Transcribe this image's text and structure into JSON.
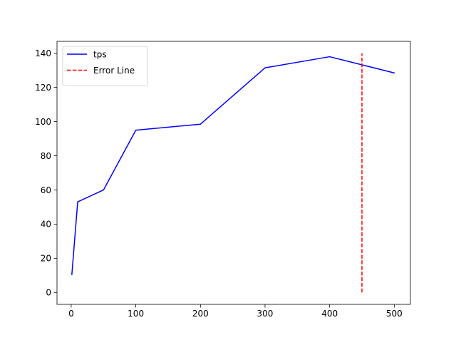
{
  "chart_data": {
    "type": "line",
    "title": "",
    "xlabel": "",
    "ylabel": "",
    "xlim": [
      -22,
      525
    ],
    "ylim": [
      -7,
      147
    ],
    "xticks": [
      0,
      100,
      200,
      300,
      400,
      500
    ],
    "yticks": [
      0,
      20,
      40,
      60,
      80,
      100,
      120,
      140
    ],
    "grid": false,
    "legend_position": "top-left",
    "series": [
      {
        "name": "tps",
        "style": "solid",
        "color": "#0000ff",
        "x": [
          1,
          10,
          50,
          100,
          200,
          300,
          400,
          500
        ],
        "y": [
          10.5,
          53,
          60,
          95,
          98.5,
          131.5,
          138,
          128.5
        ]
      }
    ],
    "reference_lines": [
      {
        "name": "Error Line",
        "style": "dashed",
        "color": "#ff0000",
        "x": 450,
        "y_from": 0,
        "y_to": 140
      }
    ]
  }
}
